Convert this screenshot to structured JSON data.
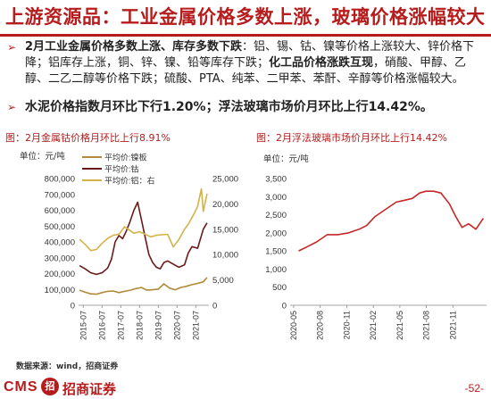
{
  "header": {
    "title": "上游资源品：工业金属价格多数上涨，玻璃价格涨幅较大"
  },
  "bullets": [
    {
      "parts": [
        {
          "text": "2月工业金属价格多数上涨、库存多数下跌",
          "bold": true
        },
        {
          "text": "：铝、锡、钴、镍等价格上涨较大、锌价格下降；铝库存上涨，铜、锌、镍、铅等库存下跌；",
          "bold": false
        },
        {
          "text": "化工品价格涨跌互现",
          "bold": true
        },
        {
          "text": "，硝酸、甲醇、乙醇、二乙二醇等价格下跌；硫酸、PTA、纯苯、二甲苯、苯酐、辛醇等价格涨幅较大。",
          "bold": false
        }
      ]
    },
    {
      "parts": [
        {
          "text": "水泥价格指数月环比下行1.20%；浮法玻璃市场价月环比上行14.42%。",
          "bold": true
        }
      ]
    }
  ],
  "charts": {
    "left_title": "图：2月金属钴价格月环比上行8.91%",
    "left_unit": "单位：元/吨",
    "right_title": "图：2月浮法玻璃市场价月环比上行14.42%",
    "right_unit": "单位：元/吨"
  },
  "chart_data": [
    {
      "type": "line",
      "title": "图：2月金属钴价格月环比上行8.91%",
      "unit": "单位：元/吨",
      "x_ticks": [
        "2015-07",
        "2016-07",
        "2017-07",
        "2018-07",
        "2019-07",
        "2020-07",
        "2021-07"
      ],
      "x_range": [
        2015.25,
        2022.2
      ],
      "y_left": {
        "ticks": [
          0,
          100000,
          200000,
          300000,
          400000,
          500000,
          600000,
          700000,
          800000
        ],
        "range": [
          0,
          800000
        ]
      },
      "y_right": {
        "ticks": [
          0,
          5000,
          10000,
          15000,
          20000,
          25000
        ],
        "range": [
          0,
          25000
        ]
      },
      "grid": false,
      "legend_position": "top-left",
      "series": [
        {
          "name": "平均价:镍板",
          "axis": "left",
          "color": "#b08a3a",
          "x": [
            2015.3,
            2015.6,
            2015.9,
            2016.2,
            2016.5,
            2016.8,
            2017.1,
            2017.4,
            2017.7,
            2018.0,
            2018.3,
            2018.6,
            2018.9,
            2019.2,
            2019.5,
            2019.8,
            2020.1,
            2020.4,
            2020.7,
            2021.0,
            2021.3,
            2021.6,
            2021.9,
            2022.1
          ],
          "y": [
            95000,
            82000,
            72000,
            70000,
            80000,
            88000,
            90000,
            80000,
            88000,
            95000,
            105000,
            112000,
            95000,
            98000,
            102000,
            135000,
            108000,
            98000,
            112000,
            120000,
            130000,
            138000,
            148000,
            175000
          ]
        },
        {
          "name": "平均价:钴",
          "axis": "left",
          "color": "#6b1a1a",
          "x": [
            2015.3,
            2015.6,
            2015.9,
            2016.2,
            2016.5,
            2016.8,
            2017.0,
            2017.2,
            2017.4,
            2017.6,
            2017.8,
            2018.0,
            2018.2,
            2018.4,
            2018.6,
            2018.8,
            2019.0,
            2019.2,
            2019.4,
            2019.6,
            2019.8,
            2020.0,
            2020.3,
            2020.6,
            2020.9,
            2021.1,
            2021.3,
            2021.6,
            2021.9,
            2022.1
          ],
          "y": [
            250000,
            230000,
            205000,
            195000,
            205000,
            235000,
            290000,
            400000,
            440000,
            420000,
            470000,
            530000,
            600000,
            650000,
            540000,
            430000,
            320000,
            270000,
            240000,
            230000,
            270000,
            280000,
            260000,
            240000,
            255000,
            330000,
            370000,
            360000,
            480000,
            520000
          ]
        },
        {
          "name": "平均价:铝：右",
          "axis": "right",
          "color": "#d4b24a",
          "x": [
            2015.3,
            2015.6,
            2015.9,
            2016.2,
            2016.5,
            2016.8,
            2017.1,
            2017.4,
            2017.7,
            2017.9,
            2018.2,
            2018.5,
            2018.8,
            2019.1,
            2019.4,
            2019.7,
            2020.0,
            2020.3,
            2020.6,
            2020.9,
            2021.1,
            2021.4,
            2021.6,
            2021.8,
            2021.9,
            2022.1
          ],
          "y": [
            13000,
            12000,
            10800,
            11000,
            12200,
            13200,
            13800,
            14000,
            15500,
            15000,
            14200,
            14500,
            14000,
            13500,
            13800,
            13900,
            14000,
            11500,
            13000,
            15000,
            16000,
            18000,
            19500,
            23000,
            18500,
            22000
          ]
        }
      ]
    },
    {
      "type": "line",
      "title": "图：2月浮法玻璃市场价月环比上行14.42%",
      "unit": "单位：元/吨",
      "x_ticks": [
        "2020-05",
        "2020-08",
        "2020-11",
        "2021-02",
        "2021-05",
        "2021-08",
        "2021-11"
      ],
      "x_range": [
        2020.3,
        2022.15
      ],
      "y_left": {
        "ticks": [
          0,
          500,
          1000,
          1500,
          2000,
          2500,
          3000,
          3500
        ],
        "range": [
          0,
          3500
        ]
      },
      "grid": false,
      "series": [
        {
          "name": "浮法玻璃市场价",
          "axis": "left",
          "color": "#c62828",
          "x": [
            2020.38,
            2020.45,
            2020.55,
            2020.65,
            2020.75,
            2020.85,
            2020.95,
            2021.02,
            2021.1,
            2021.2,
            2021.3,
            2021.38,
            2021.45,
            2021.52,
            2021.58,
            2021.65,
            2021.72,
            2021.8,
            2021.86,
            2021.92,
            2021.98,
            2022.05,
            2022.12
          ],
          "y": [
            1500,
            1600,
            1750,
            1950,
            1950,
            2000,
            2100,
            2200,
            2450,
            2650,
            2850,
            2900,
            2950,
            3100,
            3150,
            3150,
            3100,
            2800,
            2450,
            2150,
            2250,
            2100,
            2400
          ]
        }
      ]
    }
  ],
  "source": "数据来源：wind，招商证券",
  "footer": {
    "brand_cms": "CMS",
    "brand_mark": "招",
    "brand_cn": "招商证券",
    "page": "-52-"
  }
}
